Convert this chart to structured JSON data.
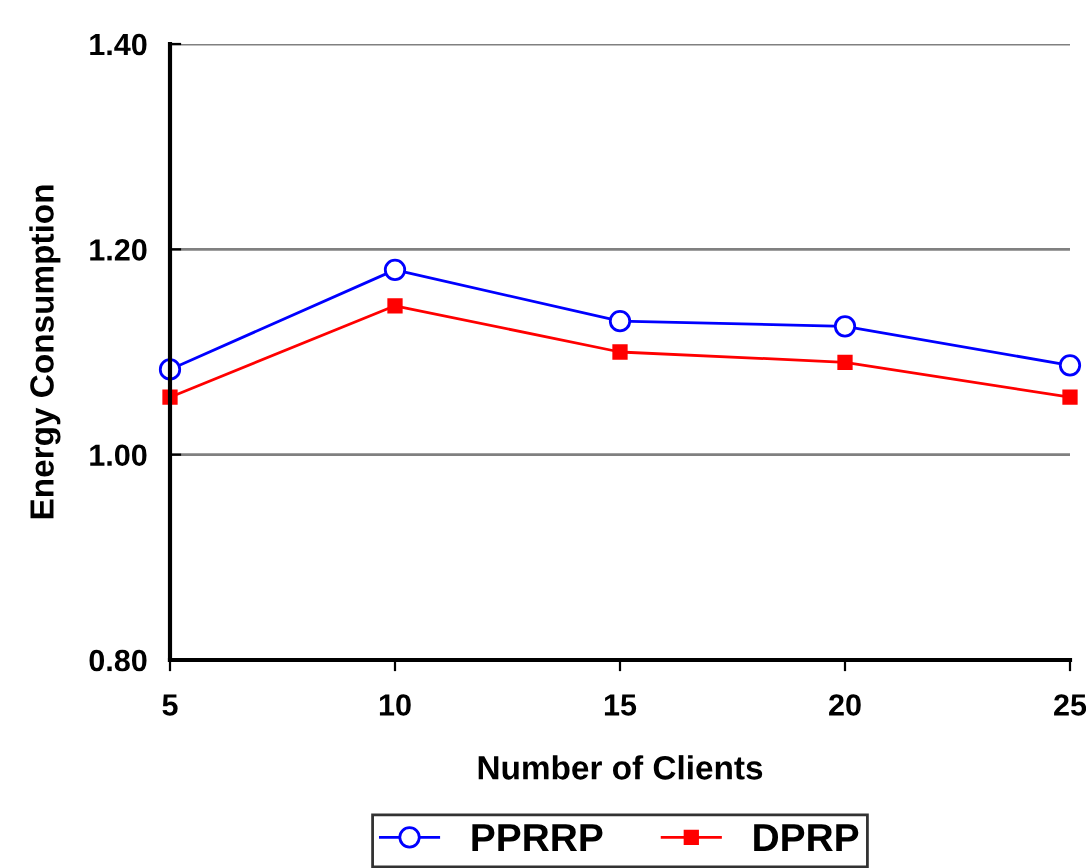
{
  "chart_data": {
    "type": "line",
    "xlabel": "Number of Clients",
    "ylabel": "Energy Consumption",
    "x": [
      5,
      10,
      15,
      20,
      25
    ],
    "series": [
      {
        "name": "PPRRP",
        "color": "#0000ff",
        "marker": "circle",
        "values": [
          1.083,
          1.18,
          1.13,
          1.125,
          1.087
        ]
      },
      {
        "name": "DPRP",
        "color": "#ff0000",
        "marker": "square",
        "values": [
          1.056,
          1.145,
          1.1,
          1.09,
          1.056
        ]
      }
    ],
    "xlim": [
      5,
      25
    ],
    "xticks": [
      5,
      10,
      15,
      20,
      25
    ],
    "ylim": [
      0.8,
      1.4
    ],
    "yticks": [
      {
        "value": 0.8,
        "label": "0.80"
      },
      {
        "value": 1.0,
        "label": "1.00"
      },
      {
        "value": 1.2,
        "label": "1.20"
      },
      {
        "value": 1.4,
        "label": "1.40"
      }
    ],
    "grid": "y",
    "legend": "bottom",
    "line_style": "solid"
  }
}
